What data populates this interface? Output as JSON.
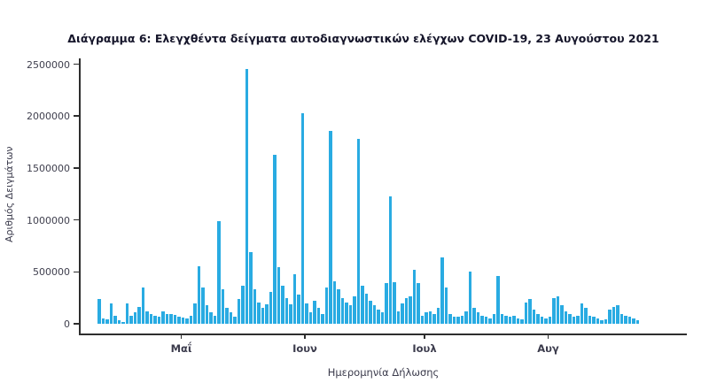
{
  "chart_data": {
    "type": "bar",
    "title": "Διάγραμμα 6: Ελεγχθέντα δείγματα αυτοδιαγνωστικών ελέγχων COVID-19, 23 Αυγούστου 2021",
    "xlabel": "Ημερομηνία Δήλωσης",
    "ylabel": "Αριθμός Δειγμάτων",
    "ylim": [
      0,
      2500000
    ],
    "grid": false,
    "legend": false,
    "y_ticks": [
      0,
      500000,
      1000000,
      1500000,
      2000000,
      2500000
    ],
    "x_ticks": [
      {
        "label": "Μαΐ",
        "day_index": 21
      },
      {
        "label": "Ιουν",
        "day_index": 52
      },
      {
        "label": "Ιουλ",
        "day_index": 82
      },
      {
        "label": "Αυγ",
        "day_index": 113
      }
    ],
    "start_date": "2021-04-10",
    "end_date": "2021-08-23",
    "bar_color": "#29ABE2",
    "axis_color": "#2e2e2e",
    "text_color": "#3b3b4c",
    "values": [
      240000,
      50000,
      40000,
      195000,
      80000,
      37000,
      20000,
      195000,
      80000,
      110000,
      165000,
      350000,
      120000,
      95000,
      80000,
      65000,
      120000,
      95000,
      90000,
      85000,
      70000,
      60000,
      55000,
      75000,
      195000,
      555000,
      350000,
      180000,
      110000,
      75000,
      985000,
      335000,
      150000,
      108000,
      65000,
      235000,
      365000,
      2450000,
      690000,
      335000,
      207000,
      150000,
      190000,
      310000,
      1630000,
      548000,
      365000,
      250000,
      185000,
      480000,
      280000,
      2030000,
      195000,
      110000,
      220000,
      150000,
      95000,
      350000,
      1860000,
      410000,
      335000,
      250000,
      207000,
      180000,
      265000,
      1780000,
      365000,
      290000,
      220000,
      180000,
      135000,
      110000,
      390000,
      1230000,
      400000,
      120000,
      195000,
      250000,
      265000,
      520000,
      390000,
      80000,
      110000,
      120000,
      95000,
      150000,
      640000,
      350000,
      95000,
      70000,
      70000,
      80000,
      120000,
      505000,
      150000,
      110000,
      80000,
      70000,
      50000,
      95000,
      460000,
      95000,
      80000,
      70000,
      80000,
      50000,
      45000,
      205000,
      240000,
      135000,
      90000,
      70000,
      55000,
      65000,
      250000,
      265000,
      180000,
      120000,
      90000,
      65000,
      80000,
      195000,
      150000,
      80000,
      70000,
      50000,
      35000,
      45000,
      135000,
      160000,
      180000,
      95000,
      80000,
      70000,
      55000,
      30000
    ]
  }
}
